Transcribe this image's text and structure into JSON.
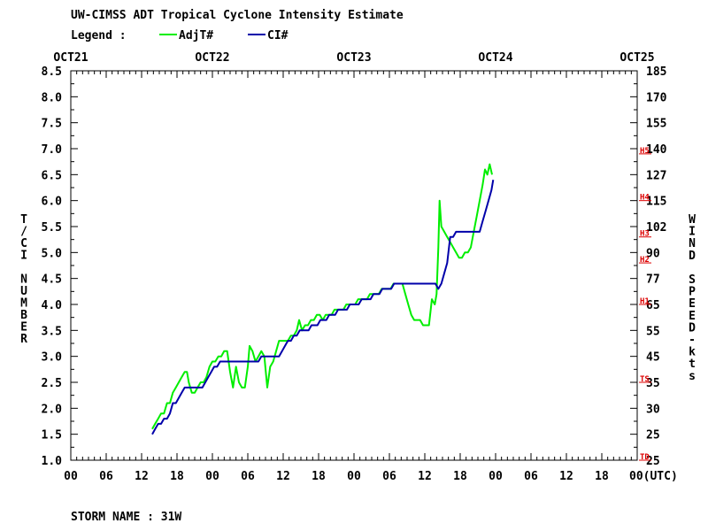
{
  "header": {
    "title": "UW-CIMSS ADT Tropical Cyclone Intensity Estimate",
    "legend_label": "Legend :"
  },
  "footer": {
    "storm_name": "STORM NAME : 31W"
  },
  "colors": {
    "adj": "#00ee00",
    "ci": "#0000aa",
    "cat": "#dd0000",
    "axis": "#000000"
  },
  "chart_data": {
    "type": "line",
    "title": "UW-CIMSS ADT Tropical Cyclone Intensity Estimate",
    "ylabel_left": "T/CI NUMBER",
    "ylabel_right": "WIND SPEED-kts",
    "xlabel_suffix": "(UTC)",
    "xlim_hours": [
      0,
      96
    ],
    "ylim": [
      1.0,
      8.5
    ],
    "date_labels": [
      "OCT21",
      "OCT22",
      "OCT23",
      "OCT24",
      "OCT25"
    ],
    "hour_ticks": [
      "00",
      "06",
      "12",
      "18",
      "00",
      "06",
      "12",
      "18",
      "00",
      "06",
      "12",
      "18",
      "00",
      "06",
      "12",
      "18",
      "00"
    ],
    "left_ticks": [
      "1.0",
      "1.5",
      "2.0",
      "2.5",
      "3.0",
      "3.5",
      "4.0",
      "4.5",
      "5.0",
      "5.5",
      "6.0",
      "6.5",
      "7.0",
      "7.5",
      "8.0",
      "8.5"
    ],
    "right_ticks": [
      "25",
      "25",
      "30",
      "35",
      "45",
      "55",
      "65",
      "77",
      "90",
      "102",
      "115",
      "127",
      "140",
      "155",
      "170",
      "185"
    ],
    "categories_marks": [
      {
        "label": "TD",
        "value": 1.0
      },
      {
        "label": "TS",
        "value": 2.5
      },
      {
        "label": "H1",
        "value": 4.0
      },
      {
        "label": "H2",
        "value": 4.8
      },
      {
        "label": "H3",
        "value": 5.3
      },
      {
        "label": "H4",
        "value": 6.0
      },
      {
        "label": "H5",
        "value": 6.9
      }
    ],
    "legend": [
      {
        "name": "AdjT#",
        "color": "#00ee00"
      },
      {
        "name": "CI#",
        "color": "#0000aa"
      }
    ],
    "series": [
      {
        "name": "AdjT#",
        "color": "#00ee00",
        "points": [
          [
            13.8,
            1.6
          ],
          [
            14.3,
            1.7
          ],
          [
            14.8,
            1.8
          ],
          [
            15.3,
            1.9
          ],
          [
            15.8,
            1.9
          ],
          [
            16.3,
            2.1
          ],
          [
            16.8,
            2.1
          ],
          [
            17.3,
            2.3
          ],
          [
            17.8,
            2.4
          ],
          [
            18.3,
            2.5
          ],
          [
            18.8,
            2.6
          ],
          [
            19.3,
            2.7
          ],
          [
            19.7,
            2.7
          ],
          [
            20.0,
            2.5
          ],
          [
            20.5,
            2.3
          ],
          [
            21.0,
            2.3
          ],
          [
            21.5,
            2.4
          ],
          [
            22.0,
            2.5
          ],
          [
            22.5,
            2.5
          ],
          [
            23.0,
            2.6
          ],
          [
            23.5,
            2.8
          ],
          [
            24.0,
            2.9
          ],
          [
            24.5,
            2.9
          ],
          [
            25.0,
            3.0
          ],
          [
            25.5,
            3.0
          ],
          [
            26.0,
            3.1
          ],
          [
            26.5,
            3.1
          ],
          [
            27.0,
            2.7
          ],
          [
            27.5,
            2.4
          ],
          [
            28.0,
            2.8
          ],
          [
            28.5,
            2.5
          ],
          [
            29.0,
            2.4
          ],
          [
            29.5,
            2.4
          ],
          [
            30.0,
            2.8
          ],
          [
            30.3,
            3.2
          ],
          [
            30.8,
            3.1
          ],
          [
            31.3,
            2.9
          ],
          [
            31.8,
            3.0
          ],
          [
            32.3,
            3.1
          ],
          [
            32.8,
            3.0
          ],
          [
            33.3,
            2.4
          ],
          [
            33.8,
            2.8
          ],
          [
            34.3,
            2.9
          ],
          [
            34.8,
            3.1
          ],
          [
            35.3,
            3.3
          ],
          [
            35.8,
            3.3
          ],
          [
            36.3,
            3.3
          ],
          [
            36.8,
            3.3
          ],
          [
            37.3,
            3.4
          ],
          [
            37.8,
            3.4
          ],
          [
            38.3,
            3.5
          ],
          [
            38.7,
            3.7
          ],
          [
            39.2,
            3.5
          ],
          [
            39.7,
            3.6
          ],
          [
            40.2,
            3.6
          ],
          [
            40.7,
            3.7
          ],
          [
            41.2,
            3.7
          ],
          [
            41.7,
            3.8
          ],
          [
            42.2,
            3.8
          ],
          [
            42.7,
            3.7
          ],
          [
            43.2,
            3.8
          ],
          [
            43.7,
            3.8
          ],
          [
            44.2,
            3.8
          ],
          [
            44.7,
            3.9
          ],
          [
            45.2,
            3.9
          ],
          [
            45.7,
            3.9
          ],
          [
            46.2,
            3.9
          ],
          [
            46.7,
            4.0
          ],
          [
            47.2,
            4.0
          ],
          [
            47.7,
            4.0
          ],
          [
            48.2,
            4.0
          ],
          [
            48.7,
            4.1
          ],
          [
            49.2,
            4.1
          ],
          [
            49.7,
            4.1
          ],
          [
            50.2,
            4.1
          ],
          [
            50.7,
            4.2
          ],
          [
            51.2,
            4.2
          ],
          [
            51.7,
            4.2
          ],
          [
            52.2,
            4.2
          ],
          [
            52.7,
            4.3
          ],
          [
            53.2,
            4.3
          ],
          [
            53.7,
            4.3
          ],
          [
            54.2,
            4.3
          ],
          [
            54.7,
            4.4
          ],
          [
            55.2,
            4.4
          ],
          [
            55.7,
            4.4
          ],
          [
            56.2,
            4.4
          ],
          [
            56.7,
            4.2
          ],
          [
            57.2,
            4.0
          ],
          [
            57.7,
            3.8
          ],
          [
            58.2,
            3.7
          ],
          [
            58.7,
            3.7
          ],
          [
            59.2,
            3.7
          ],
          [
            59.7,
            3.6
          ],
          [
            60.2,
            3.6
          ],
          [
            60.7,
            3.6
          ],
          [
            61.2,
            4.1
          ],
          [
            61.7,
            4.0
          ],
          [
            62.0,
            4.2
          ],
          [
            62.3,
            5.1
          ],
          [
            62.5,
            6.0
          ],
          [
            62.8,
            5.5
          ],
          [
            63.3,
            5.4
          ],
          [
            63.8,
            5.3
          ],
          [
            64.3,
            5.2
          ],
          [
            64.8,
            5.1
          ],
          [
            65.3,
            5.0
          ],
          [
            65.8,
            4.9
          ],
          [
            66.3,
            4.9
          ],
          [
            66.8,
            5.0
          ],
          [
            67.3,
            5.0
          ],
          [
            67.8,
            5.1
          ],
          [
            68.3,
            5.4
          ],
          [
            68.8,
            5.7
          ],
          [
            69.3,
            6.0
          ],
          [
            69.8,
            6.3
          ],
          [
            70.2,
            6.6
          ],
          [
            70.6,
            6.5
          ],
          [
            71.0,
            6.7
          ],
          [
            71.4,
            6.5
          ]
        ]
      },
      {
        "name": "CI#",
        "color": "#0000aa",
        "points": [
          [
            13.8,
            1.5
          ],
          [
            14.3,
            1.6
          ],
          [
            14.8,
            1.7
          ],
          [
            15.3,
            1.7
          ],
          [
            15.8,
            1.8
          ],
          [
            16.3,
            1.8
          ],
          [
            16.8,
            1.9
          ],
          [
            17.3,
            2.1
          ],
          [
            17.8,
            2.1
          ],
          [
            18.3,
            2.2
          ],
          [
            18.8,
            2.3
          ],
          [
            19.3,
            2.4
          ],
          [
            19.8,
            2.4
          ],
          [
            20.3,
            2.4
          ],
          [
            20.8,
            2.4
          ],
          [
            21.3,
            2.4
          ],
          [
            21.8,
            2.4
          ],
          [
            22.3,
            2.4
          ],
          [
            22.8,
            2.5
          ],
          [
            23.3,
            2.6
          ],
          [
            23.8,
            2.7
          ],
          [
            24.3,
            2.8
          ],
          [
            24.8,
            2.8
          ],
          [
            25.3,
            2.9
          ],
          [
            25.8,
            2.9
          ],
          [
            26.3,
            2.9
          ],
          [
            26.8,
            2.9
          ],
          [
            27.3,
            2.9
          ],
          [
            27.8,
            2.9
          ],
          [
            28.3,
            2.9
          ],
          [
            28.8,
            2.9
          ],
          [
            29.3,
            2.9
          ],
          [
            29.8,
            2.9
          ],
          [
            30.3,
            2.9
          ],
          [
            30.8,
            2.9
          ],
          [
            31.3,
            2.9
          ],
          [
            31.8,
            2.9
          ],
          [
            32.3,
            3.0
          ],
          [
            32.8,
            3.0
          ],
          [
            33.3,
            3.0
          ],
          [
            33.8,
            3.0
          ],
          [
            34.3,
            3.0
          ],
          [
            34.8,
            3.0
          ],
          [
            35.3,
            3.0
          ],
          [
            35.8,
            3.1
          ],
          [
            36.3,
            3.2
          ],
          [
            36.8,
            3.3
          ],
          [
            37.3,
            3.3
          ],
          [
            37.8,
            3.4
          ],
          [
            38.3,
            3.4
          ],
          [
            38.8,
            3.5
          ],
          [
            39.3,
            3.5
          ],
          [
            39.8,
            3.5
          ],
          [
            40.3,
            3.5
          ],
          [
            40.8,
            3.6
          ],
          [
            41.3,
            3.6
          ],
          [
            41.8,
            3.6
          ],
          [
            42.3,
            3.7
          ],
          [
            42.8,
            3.7
          ],
          [
            43.3,
            3.7
          ],
          [
            43.8,
            3.8
          ],
          [
            44.3,
            3.8
          ],
          [
            44.8,
            3.8
          ],
          [
            45.3,
            3.9
          ],
          [
            45.8,
            3.9
          ],
          [
            46.3,
            3.9
          ],
          [
            46.8,
            3.9
          ],
          [
            47.3,
            4.0
          ],
          [
            47.8,
            4.0
          ],
          [
            48.3,
            4.0
          ],
          [
            48.8,
            4.0
          ],
          [
            49.3,
            4.1
          ],
          [
            49.8,
            4.1
          ],
          [
            50.3,
            4.1
          ],
          [
            50.8,
            4.1
          ],
          [
            51.3,
            4.2
          ],
          [
            51.8,
            4.2
          ],
          [
            52.3,
            4.2
          ],
          [
            52.8,
            4.3
          ],
          [
            53.3,
            4.3
          ],
          [
            53.8,
            4.3
          ],
          [
            54.3,
            4.3
          ],
          [
            54.8,
            4.4
          ],
          [
            55.3,
            4.4
          ],
          [
            55.8,
            4.4
          ],
          [
            56.3,
            4.4
          ],
          [
            56.8,
            4.4
          ],
          [
            57.3,
            4.4
          ],
          [
            57.8,
            4.4
          ],
          [
            58.3,
            4.4
          ],
          [
            58.8,
            4.4
          ],
          [
            59.3,
            4.4
          ],
          [
            59.8,
            4.4
          ],
          [
            60.3,
            4.4
          ],
          [
            60.8,
            4.4
          ],
          [
            61.3,
            4.4
          ],
          [
            61.8,
            4.4
          ],
          [
            62.3,
            4.3
          ],
          [
            62.8,
            4.4
          ],
          [
            63.3,
            4.6
          ],
          [
            63.8,
            4.8
          ],
          [
            64.3,
            5.3
          ],
          [
            64.8,
            5.3
          ],
          [
            65.3,
            5.4
          ],
          [
            65.8,
            5.4
          ],
          [
            66.3,
            5.4
          ],
          [
            66.8,
            5.4
          ],
          [
            67.3,
            5.4
          ],
          [
            67.8,
            5.4
          ],
          [
            68.3,
            5.4
          ],
          [
            68.8,
            5.4
          ],
          [
            69.3,
            5.4
          ],
          [
            69.8,
            5.6
          ],
          [
            70.3,
            5.8
          ],
          [
            70.8,
            6.0
          ],
          [
            71.3,
            6.2
          ],
          [
            71.6,
            6.4
          ]
        ]
      }
    ]
  }
}
